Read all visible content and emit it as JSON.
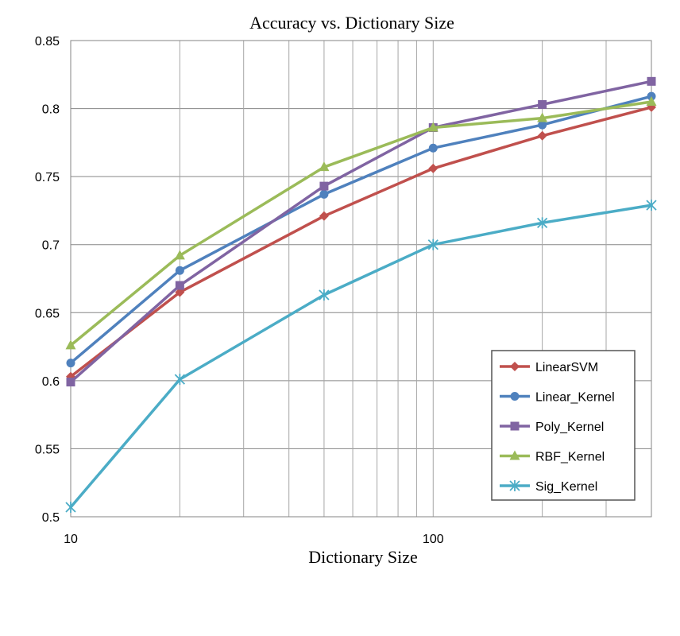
{
  "chart_data": {
    "type": "line",
    "title": "Accuracy vs. Dictionary Size",
    "xlabel": "Dictionary Size",
    "ylabel": "",
    "x_scale": "log",
    "xlim": [
      10,
      400
    ],
    "ylim": [
      0.5,
      0.85
    ],
    "x_tick_labels": [
      "10",
      "100"
    ],
    "y_tick_labels": [
      "0.5",
      "0.55",
      "0.6",
      "0.65",
      "0.7",
      "0.75",
      "0.8",
      "0.85"
    ],
    "grid": true,
    "legend_position": "bottom-right",
    "x": [
      10,
      20,
      50,
      100,
      200,
      400
    ],
    "series": [
      {
        "name": "LinearSVM",
        "values": [
          0.603,
          0.665,
          0.721,
          0.756,
          0.78,
          0.801
        ],
        "color": "#c0504d",
        "marker": "diamond"
      },
      {
        "name": "Linear_Kernel",
        "values": [
          0.613,
          0.681,
          0.737,
          0.771,
          0.788,
          0.809
        ],
        "color": "#4f81bd",
        "marker": "circle"
      },
      {
        "name": "Poly_Kernel",
        "values": [
          0.599,
          0.67,
          0.743,
          0.786,
          0.803,
          0.82
        ],
        "color": "#8064a2",
        "marker": "square"
      },
      {
        "name": "RBF_Kernel",
        "values": [
          0.626,
          0.692,
          0.757,
          0.786,
          0.793,
          0.805
        ],
        "color": "#9bbb59",
        "marker": "triangle"
      },
      {
        "name": "Sig_Kernel",
        "values": [
          0.507,
          0.601,
          0.663,
          0.7,
          0.716,
          0.729
        ],
        "color": "#4bacc6",
        "marker": "star"
      }
    ]
  }
}
